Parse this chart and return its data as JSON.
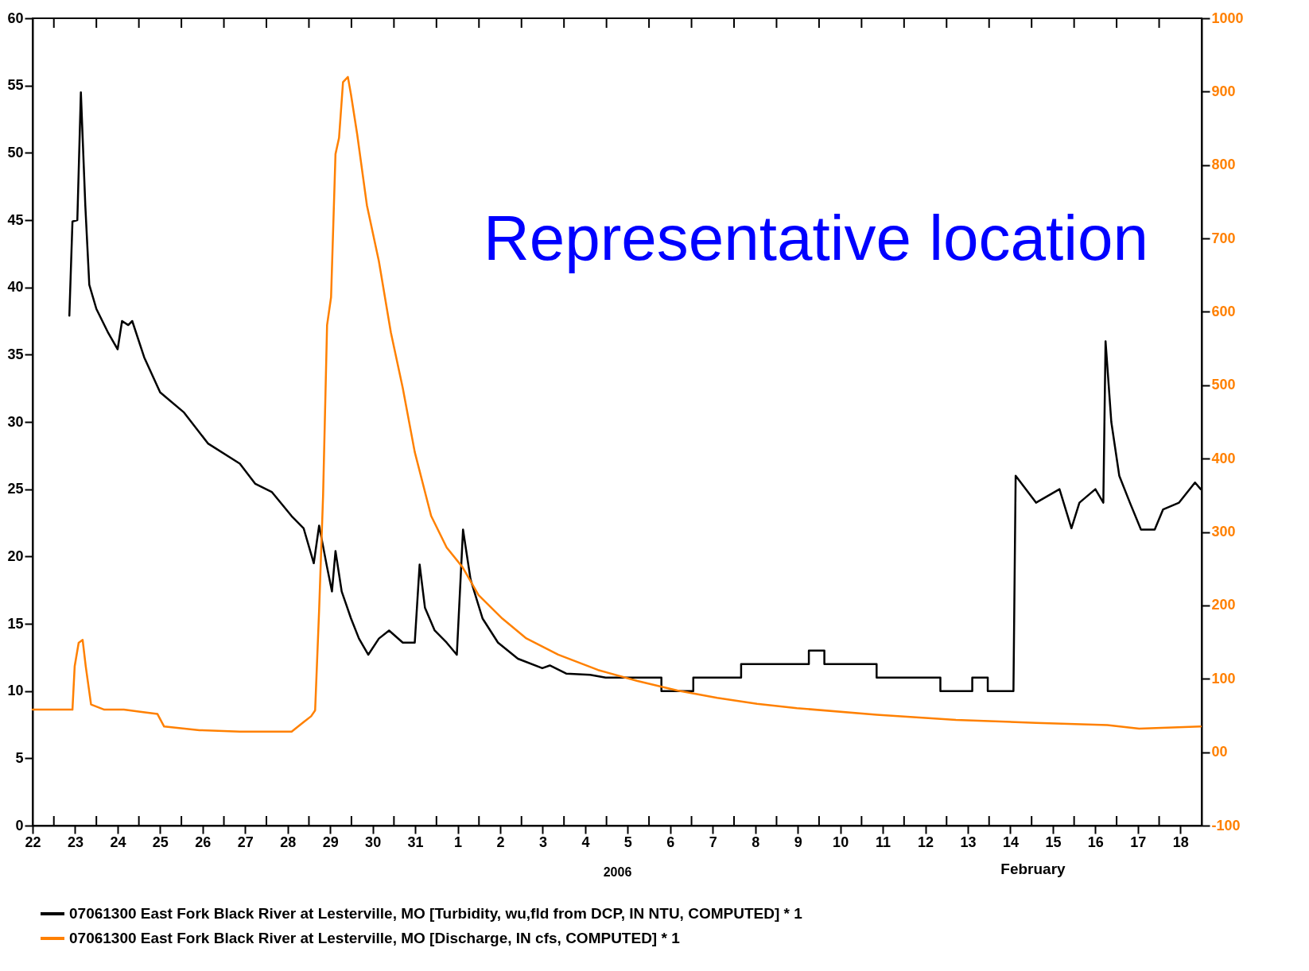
{
  "chart_data": {
    "type": "line",
    "xlabel": "2006",
    "annotations": [
      "Representative location",
      "February"
    ],
    "xlim": [
      "2006-01-22T12:00",
      "2006-02-19T00:00"
    ],
    "xticks": [
      {
        "value": "2006-01-22T12:00",
        "label": "22"
      },
      {
        "value": "2006-01-23T12:00",
        "label": "23"
      },
      {
        "value": "2006-01-24T12:00",
        "label": "24"
      },
      {
        "value": "2006-01-25T12:00",
        "label": "25"
      },
      {
        "value": "2006-01-26T12:00",
        "label": "26"
      },
      {
        "value": "2006-01-27T12:00",
        "label": "27"
      },
      {
        "value": "2006-01-28T12:00",
        "label": "28"
      },
      {
        "value": "2006-01-29T12:00",
        "label": "29"
      },
      {
        "value": "2006-01-30T12:00",
        "label": "30"
      },
      {
        "value": "2006-01-31T12:00",
        "label": "31"
      },
      {
        "value": "2006-02-01T12:00",
        "label": "1"
      },
      {
        "value": "2006-02-02T12:00",
        "label": "2"
      },
      {
        "value": "2006-02-03T12:00",
        "label": "3"
      },
      {
        "value": "2006-02-04T12:00",
        "label": "4"
      },
      {
        "value": "2006-02-05T12:00",
        "label": "5"
      },
      {
        "value": "2006-02-06T12:00",
        "label": "6"
      },
      {
        "value": "2006-02-07T12:00",
        "label": "7"
      },
      {
        "value": "2006-02-08T12:00",
        "label": "8"
      },
      {
        "value": "2006-02-09T12:00",
        "label": "9"
      },
      {
        "value": "2006-02-10T12:00",
        "label": "10"
      },
      {
        "value": "2006-02-11T12:00",
        "label": "11"
      },
      {
        "value": "2006-02-12T12:00",
        "label": "12"
      },
      {
        "value": "2006-02-13T12:00",
        "label": "13"
      },
      {
        "value": "2006-02-14T12:00",
        "label": "14"
      },
      {
        "value": "2006-02-15T12:00",
        "label": "15"
      },
      {
        "value": "2006-02-16T12:00",
        "label": "16"
      },
      {
        "value": "2006-02-17T12:00",
        "label": "17"
      },
      {
        "value": "2006-02-18T12:00",
        "label": "18"
      },
      {
        "value": "2006-01-23T00:00",
        "label": null
      },
      {
        "value": "2006-01-24T00:00",
        "label": null
      },
      {
        "value": "2006-01-25T00:00",
        "label": null
      },
      {
        "value": "2006-01-26T00:00",
        "label": null
      },
      {
        "value": "2006-01-27T00:00",
        "label": null
      },
      {
        "value": "2006-01-28T00:00",
        "label": null
      },
      {
        "value": "2006-01-29T00:00",
        "label": null
      },
      {
        "value": "2006-01-30T00:00",
        "label": null
      },
      {
        "value": "2006-01-31T00:00",
        "label": null
      },
      {
        "value": "2006-02-01T00:00",
        "label": null
      },
      {
        "value": "2006-02-02T00:00",
        "label": null
      },
      {
        "value": "2006-02-03T00:00",
        "label": null
      },
      {
        "value": "2006-02-04T00:00",
        "label": null
      },
      {
        "value": "2006-02-05T00:00",
        "label": null
      },
      {
        "value": "2006-02-06T00:00",
        "label": null
      },
      {
        "value": "2006-02-07T00:00",
        "label": null
      },
      {
        "value": "2006-02-08T00:00",
        "label": null
      },
      {
        "value": "2006-02-09T00:00",
        "label": null
      },
      {
        "value": "2006-02-10T00:00",
        "label": null
      },
      {
        "value": "2006-02-11T00:00",
        "label": null
      },
      {
        "value": "2006-02-12T00:00",
        "label": null
      },
      {
        "value": "2006-02-13T00:00",
        "label": null
      },
      {
        "value": "2006-02-14T00:00",
        "label": null
      },
      {
        "value": "2006-02-15T00:00",
        "label": null
      },
      {
        "value": "2006-02-16T00:00",
        "label": null
      },
      {
        "value": "2006-02-17T00:00",
        "label": null
      },
      {
        "value": "2006-02-18T00:00",
        "label": null
      }
    ],
    "ylim": [
      0,
      60
    ],
    "yticks": [
      0,
      5,
      10,
      15,
      20,
      25,
      30,
      35,
      40,
      45,
      50,
      55,
      60
    ],
    "y2lim": [
      -100,
      1000
    ],
    "y2ticks": [
      -100,
      {
        "value": 0,
        "label": "00"
      },
      100,
      200,
      300,
      400,
      500,
      600,
      700,
      800,
      900,
      1000
    ],
    "grid": false,
    "legend": "bottom",
    "line_style": "solid",
    "series": [
      {
        "name": "07061300 East Fork Black River at Lesterville, MO [Turbidity, wu,fld from DCP, IN NTU, COMPUTED] * 1",
        "color": "#000000",
        "x": [
          "2006-01-23T08:45",
          "2006-01-23T10:30",
          "2006-01-23T13:15",
          "2006-01-23T15:15",
          "2006-01-23T17:45",
          "2006-01-23T20:00",
          "2006-01-24T00:00",
          "2006-01-24T06:45",
          "2006-01-24T12:00",
          "2006-01-24T14:30",
          "2006-01-24T18:00",
          "2006-01-24T20:15",
          "2006-01-25T03:00",
          "2006-01-25T12:00",
          "2006-01-26T01:30",
          "2006-01-26T15:00",
          "2006-01-27T09:00",
          "2006-01-27T17:45",
          "2006-01-28T03:00",
          "2006-01-28T14:15",
          "2006-01-28T21:00",
          "2006-01-29T02:45",
          "2006-01-29T05:45",
          "2006-01-29T10:15",
          "2006-01-29T13:00",
          "2006-01-29T15:00",
          "2006-01-29T18:30",
          "2006-01-29T23:45",
          "2006-01-30T04:15",
          "2006-01-30T09:30",
          "2006-01-30T15:30",
          "2006-01-30T21:15",
          "2006-01-31T05:00",
          "2006-01-31T11:45",
          "2006-01-31T14:30",
          "2006-01-31T17:30",
          "2006-01-31T23:00",
          "2006-02-01T05:45",
          "2006-02-01T11:30",
          "2006-02-01T15:00",
          "2006-02-01T19:15",
          "2006-02-02T02:00",
          "2006-02-02T10:45",
          "2006-02-02T22:00",
          "2006-02-03T11:45",
          "2006-02-03T16:00",
          "2006-02-04T01:15",
          "2006-02-04T14:45",
          "2006-02-04T23:30",
          "2006-02-06T07:00",
          "2006-02-06T07:00",
          "2006-02-07T01:00",
          "2006-02-07T01:00",
          "2006-02-08T04:00",
          "2006-02-08T04:00",
          "2006-02-09T18:15",
          "2006-02-09T18:15",
          "2006-02-10T03:00",
          "2006-02-10T03:00",
          "2006-02-11T08:30",
          "2006-02-11T08:30",
          "2006-02-12T20:30",
          "2006-02-12T20:30",
          "2006-02-13T14:30",
          "2006-02-13T14:30",
          "2006-02-13T23:15",
          "2006-02-13T23:15",
          "2006-02-14T13:45",
          "2006-02-14T15:00",
          "2006-02-15T02:30",
          "2006-02-15T15:45",
          "2006-02-15T22:30",
          "2006-02-16T03:00",
          "2006-02-16T12:00",
          "2006-02-16T16:30",
          "2006-02-16T17:45",
          "2006-02-16T21:00",
          "2006-02-17T01:30",
          "2006-02-17T07:30",
          "2006-02-17T13:45",
          "2006-02-17T21:30",
          "2006-02-18T02:15",
          "2006-02-18T11:15",
          "2006-02-18T20:15",
          "2006-02-18T23:30"
        ],
        "values": [
          37.9,
          44.9,
          45,
          54.5,
          46.1,
          40.2,
          38.4,
          36.6,
          35.4,
          37.5,
          37.2,
          37.5,
          34.8,
          32.2,
          30.7,
          28.4,
          26.9,
          25.4,
          24.8,
          23.0,
          22.1,
          19.5,
          22.3,
          19.2,
          17.4,
          20.4,
          17.4,
          15.4,
          13.9,
          12.7,
          13.9,
          14.5,
          13.6,
          13.6,
          19.4,
          16.2,
          14.5,
          13.6,
          12.7,
          22.0,
          18.3,
          15.4,
          13.6,
          12.4,
          11.7,
          11.9,
          11.3,
          11.2,
          11,
          11,
          10,
          10,
          11,
          11,
          12,
          12,
          13,
          13,
          12,
          12,
          11,
          11,
          10,
          10,
          11,
          11,
          10,
          10,
          26,
          24,
          25,
          22.1,
          24,
          25,
          24,
          36,
          30,
          26,
          24,
          22,
          22,
          23.5,
          24,
          25.5,
          25
        ]
      },
      {
        "name": "07061300 East Fork Black River at Lesterville, MO [Discharge, IN cfs, COMPUTED] * 1",
        "color": "#ff8000",
        "axis": "y2",
        "x": [
          "2006-01-22T12:00",
          "2006-01-23T10:30",
          "2006-01-23T11:45",
          "2006-01-23T14:00",
          "2006-01-23T16:15",
          "2006-01-23T18:00",
          "2006-01-23T21:00",
          "2006-01-24T04:30",
          "2006-01-24T15:30",
          "2006-01-25T00:45",
          "2006-01-25T10:30",
          "2006-01-25T14:15",
          "2006-01-26T10:15",
          "2006-01-27T09:00",
          "2006-01-28T14:15",
          "2006-01-28T21:00",
          "2006-01-29T01:15",
          "2006-01-29T03:30",
          "2006-01-29T05:45",
          "2006-01-29T08:00",
          "2006-01-29T10:15",
          "2006-01-29T12:30",
          "2006-01-29T15:00",
          "2006-01-29T17:00",
          "2006-01-29T19:15",
          "2006-01-29T22:00",
          "2006-01-29T23:45",
          "2006-01-30T03:15",
          "2006-01-30T08:45",
          "2006-01-30T15:30",
          "2006-01-30T22:15",
          "2006-01-31T05:00",
          "2006-01-31T11:45",
          "2006-01-31T21:00",
          "2006-02-01T05:45",
          "2006-02-01T14:45",
          "2006-02-01T23:45",
          "2006-02-02T13:15",
          "2006-02-03T02:45",
          "2006-02-03T20:45",
          "2006-02-04T19:15",
          "2006-02-05T17:30",
          "2006-02-06T16:00",
          "2006-02-07T14:30",
          "2006-02-08T13:00",
          "2006-02-09T11:30",
          "2006-02-11T08:30",
          "2006-02-13T05:15",
          "2006-02-15T02:30",
          "2006-02-16T18:45",
          "2006-02-17T12:45",
          "2006-02-18T23:30"
        ],
        "values": [
          58,
          58,
          117,
          149,
          153,
          117,
          65,
          58,
          58,
          55,
          52,
          35,
          30,
          28,
          28,
          41,
          49,
          57,
          193,
          350,
          582,
          620,
          815,
          837,
          913,
          920,
          896,
          842,
          745,
          669,
          572,
          496,
          409,
          322,
          279,
          252,
          214,
          182,
          155,
          133,
          112,
          97,
          84,
          74,
          66,
          60,
          51,
          44,
          40,
          37,
          32,
          35
        ]
      }
    ]
  }
}
